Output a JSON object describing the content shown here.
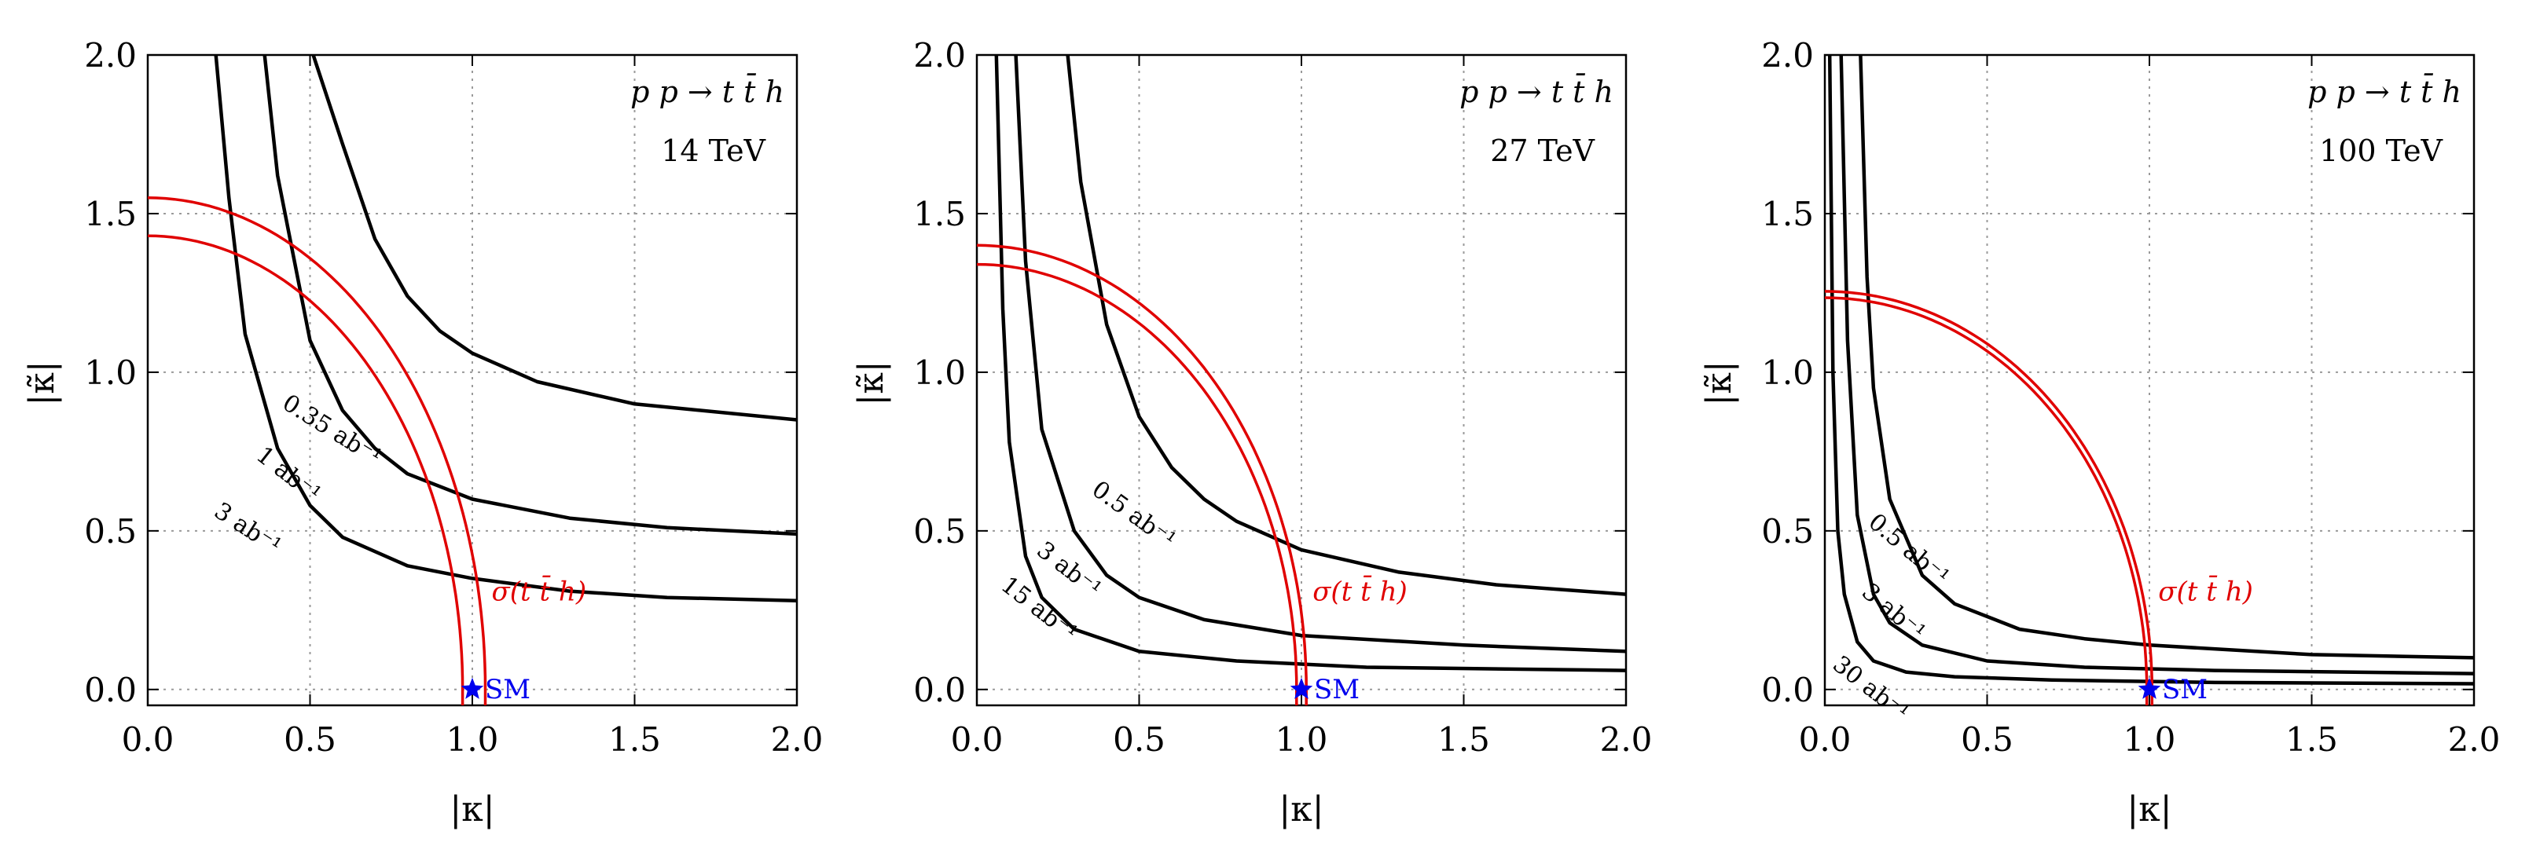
{
  "chart_data": [
    {
      "type": "line",
      "process": "p p → t t̄ h",
      "energy": "14 TeV",
      "xlabel": "|κ|",
      "ylabel": "|κ̃|",
      "xlim": [
        0,
        2
      ],
      "ylim": [
        -0.05,
        2
      ],
      "xticks": [
        "0.0",
        "0.5",
        "1.0",
        "1.5",
        "2.0"
      ],
      "yticks": [
        "0.0",
        "0.5",
        "1.0",
        "1.5",
        "2.0"
      ],
      "grid": true,
      "hyperbolas": [
        {
          "name": "0.35 ab⁻¹",
          "points": [
            [
              0.51,
              2.0
            ],
            [
              0.6,
              1.72
            ],
            [
              0.7,
              1.42
            ],
            [
              0.8,
              1.24
            ],
            [
              0.9,
              1.13
            ],
            [
              1.0,
              1.06
            ],
            [
              1.2,
              0.97
            ],
            [
              1.5,
              0.9
            ],
            [
              2.0,
              0.85
            ]
          ]
        },
        {
          "name": "1 ab⁻¹",
          "points": [
            [
              0.36,
              2.0
            ],
            [
              0.4,
              1.62
            ],
            [
              0.5,
              1.1
            ],
            [
              0.6,
              0.88
            ],
            [
              0.7,
              0.76
            ],
            [
              0.8,
              0.68
            ],
            [
              1.0,
              0.6
            ],
            [
              1.3,
              0.54
            ],
            [
              1.6,
              0.51
            ],
            [
              2.0,
              0.49
            ]
          ]
        },
        {
          "name": "3 ab⁻¹",
          "points": [
            [
              0.21,
              2.0
            ],
            [
              0.25,
              1.55
            ],
            [
              0.3,
              1.12
            ],
            [
              0.4,
              0.76
            ],
            [
              0.5,
              0.58
            ],
            [
              0.6,
              0.48
            ],
            [
              0.8,
              0.39
            ],
            [
              1.0,
              0.35
            ],
            [
              1.3,
              0.31
            ],
            [
              1.6,
              0.29
            ],
            [
              2.0,
              0.28
            ]
          ]
        }
      ],
      "sigma_band": {
        "label": "σ(t t̄ h)",
        "inner": {
          "a": 0.97,
          "b": 1.43
        },
        "outer": {
          "a": 1.04,
          "b": 1.55
        }
      },
      "sm_point": {
        "label": "SM",
        "x": 1.0,
        "y": 0.0
      }
    },
    {
      "type": "line",
      "process": "p p → t t̄ h",
      "energy": "27 TeV",
      "xlabel": "|κ|",
      "ylabel": "|κ̃|",
      "xlim": [
        0,
        2
      ],
      "ylim": [
        -0.05,
        2
      ],
      "xticks": [
        "0.0",
        "0.5",
        "1.0",
        "1.5",
        "2.0"
      ],
      "yticks": [
        "0.0",
        "0.5",
        "1.0",
        "1.5",
        "2.0"
      ],
      "grid": true,
      "hyperbolas": [
        {
          "name": "0.5 ab⁻¹",
          "points": [
            [
              0.28,
              2.0
            ],
            [
              0.32,
              1.6
            ],
            [
              0.4,
              1.15
            ],
            [
              0.5,
              0.86
            ],
            [
              0.6,
              0.7
            ],
            [
              0.7,
              0.6
            ],
            [
              0.8,
              0.53
            ],
            [
              1.0,
              0.44
            ],
            [
              1.3,
              0.37
            ],
            [
              1.6,
              0.33
            ],
            [
              2.0,
              0.3
            ]
          ]
        },
        {
          "name": "3 ab⁻¹",
          "points": [
            [
              0.12,
              2.0
            ],
            [
              0.15,
              1.35
            ],
            [
              0.2,
              0.82
            ],
            [
              0.3,
              0.5
            ],
            [
              0.4,
              0.36
            ],
            [
              0.5,
              0.29
            ],
            [
              0.7,
              0.22
            ],
            [
              1.0,
              0.17
            ],
            [
              1.5,
              0.14
            ],
            [
              2.0,
              0.12
            ]
          ]
        },
        {
          "name": "15 ab⁻¹",
          "points": [
            [
              0.06,
              2.0
            ],
            [
              0.08,
              1.2
            ],
            [
              0.1,
              0.78
            ],
            [
              0.15,
              0.42
            ],
            [
              0.2,
              0.29
            ],
            [
              0.3,
              0.19
            ],
            [
              0.5,
              0.12
            ],
            [
              0.8,
              0.09
            ],
            [
              1.2,
              0.07
            ],
            [
              2.0,
              0.06
            ]
          ]
        }
      ],
      "sigma_band": {
        "label": "σ(t t̄ h)",
        "inner": {
          "a": 0.985,
          "b": 1.34
        },
        "outer": {
          "a": 1.015,
          "b": 1.4
        }
      },
      "sm_point": {
        "label": "SM",
        "x": 1.0,
        "y": 0.0
      }
    },
    {
      "type": "line",
      "process": "p p → t t̄ h",
      "energy": "100 TeV",
      "xlabel": "|κ|",
      "ylabel": "|κ̃|",
      "xlim": [
        0,
        2
      ],
      "ylim": [
        -0.05,
        2
      ],
      "xticks": [
        "0.0",
        "0.5",
        "1.0",
        "1.5",
        "2.0"
      ],
      "yticks": [
        "0.0",
        "0.5",
        "1.0",
        "1.5",
        "2.0"
      ],
      "grid": true,
      "hyperbolas": [
        {
          "name": "0.5 ab⁻¹",
          "points": [
            [
              0.11,
              2.0
            ],
            [
              0.13,
              1.3
            ],
            [
              0.15,
              0.95
            ],
            [
              0.2,
              0.6
            ],
            [
              0.3,
              0.36
            ],
            [
              0.4,
              0.27
            ],
            [
              0.6,
              0.19
            ],
            [
              0.8,
              0.16
            ],
            [
              1.0,
              0.14
            ],
            [
              1.5,
              0.11
            ],
            [
              2.0,
              0.1
            ]
          ]
        },
        {
          "name": "3 ab⁻¹",
          "points": [
            [
              0.05,
              2.0
            ],
            [
              0.07,
              1.1
            ],
            [
              0.1,
              0.55
            ],
            [
              0.15,
              0.3
            ],
            [
              0.2,
              0.21
            ],
            [
              0.3,
              0.14
            ],
            [
              0.5,
              0.09
            ],
            [
              0.8,
              0.07
            ],
            [
              1.2,
              0.06
            ],
            [
              2.0,
              0.05
            ]
          ]
        },
        {
          "name": "30 ab⁻¹",
          "points": [
            [
              0.015,
              2.0
            ],
            [
              0.025,
              1.0
            ],
            [
              0.04,
              0.5
            ],
            [
              0.06,
              0.3
            ],
            [
              0.1,
              0.15
            ],
            [
              0.15,
              0.09
            ],
            [
              0.25,
              0.055
            ],
            [
              0.4,
              0.04
            ],
            [
              0.7,
              0.03
            ],
            [
              1.2,
              0.022
            ],
            [
              2.0,
              0.018
            ]
          ]
        }
      ],
      "sigma_band": {
        "label": "σ(t t̄ h)",
        "inner": {
          "a": 0.992,
          "b": 1.235
        },
        "outer": {
          "a": 1.008,
          "b": 1.255
        }
      },
      "sm_point": {
        "label": "SM",
        "x": 1.0,
        "y": 0.0
      }
    }
  ],
  "colors": {
    "curve": "#000000",
    "sigma": "#e00000",
    "sm": "#0000ee",
    "grid": "#9a9a9a"
  }
}
